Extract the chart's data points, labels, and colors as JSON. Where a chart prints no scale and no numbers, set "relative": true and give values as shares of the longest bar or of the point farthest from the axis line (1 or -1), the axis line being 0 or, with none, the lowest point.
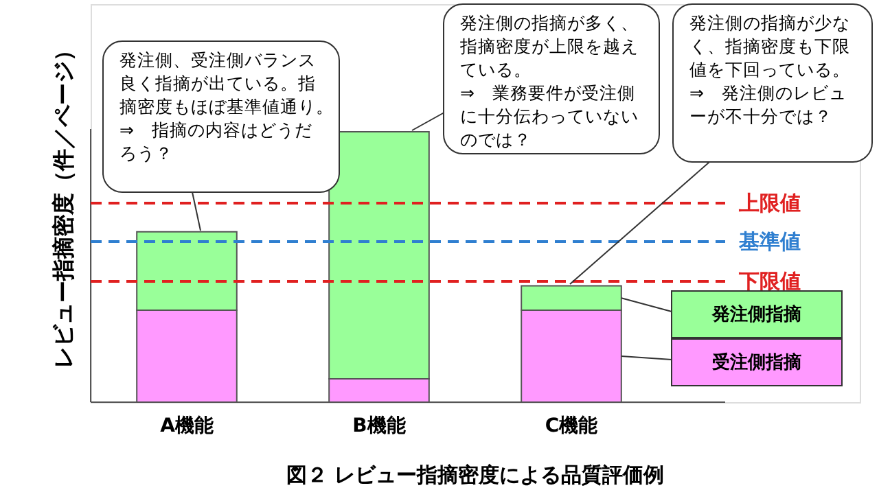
{
  "chart_data": {
    "type": "bar",
    "stacked": true,
    "relative": true,
    "title": "図２ レビュー指摘密度による品質評価例",
    "ylabel": "レビュー指摘密度（件／ページ）",
    "categories": [
      "A機能",
      "B機能",
      "C機能"
    ],
    "series": [
      {
        "name": "受注側指摘",
        "color": "#ff99ff",
        "values": [
          0.34,
          0.086,
          0.34
        ]
      },
      {
        "name": "発注側指摘",
        "color": "#99ff99",
        "values": [
          0.29,
          0.914,
          0.09
        ]
      }
    ],
    "ref_lines": [
      {
        "axis": "y",
        "value": 0.736,
        "label": "上限値",
        "color": "#e02020",
        "line_style": "dashed"
      },
      {
        "axis": "y",
        "value": 0.594,
        "label": "基準値",
        "color": "#2f7fd0",
        "line_style": "dashed"
      },
      {
        "axis": "y",
        "value": 0.447,
        "label": "下限値",
        "color": "#e02020",
        "line_style": "dashed"
      }
    ],
    "annotations": [
      "発注側、受注側バランス良く指摘が出ている。指摘密度もほぼ基準値通り。\n⇒　指摘の内容はどうだろう？",
      "発注側の指摘が多く、指摘密度が上限を越えている。\n⇒　業務要件が受注側に十分伝わっていないのでは？",
      "発注側の指摘が少なく、指摘密度も下限値を下回っている。\n⇒　発注側のレビューが不十分では？"
    ],
    "legend": "right",
    "grid": false
  }
}
